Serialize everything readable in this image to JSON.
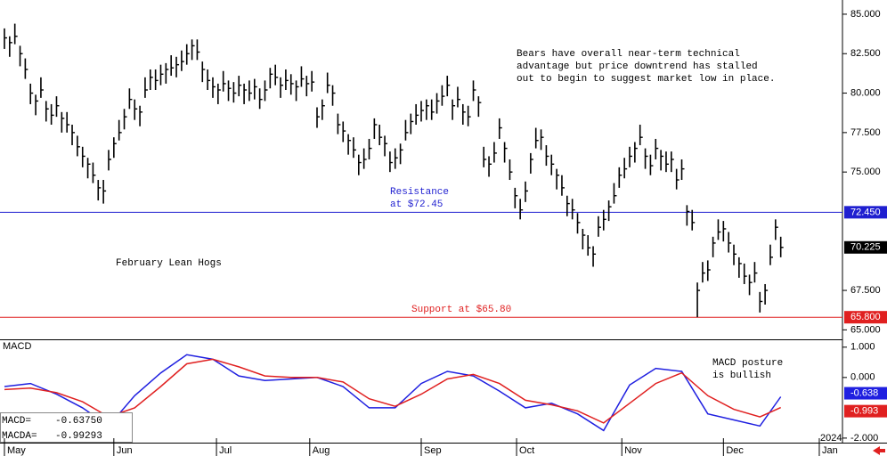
{
  "chart_data": [
    {
      "type": "hlc",
      "title": "February Lean Hogs",
      "annotation": [
        "Bears have overall near-term technical",
        "advantage but price downtrend has stalled",
        "out to begin to suggest market low in place."
      ],
      "color": "#000000",
      "xlim": [
        -0.85,
        160.85
      ],
      "ylim": [
        64.4,
        85.9
      ],
      "yticks": [
        {
          "value": 85,
          "label": "85.000"
        },
        {
          "value": 82.5,
          "label": "82.500"
        },
        {
          "value": 80,
          "label": "80.000"
        },
        {
          "value": 77.5,
          "label": "77.500"
        },
        {
          "value": 75,
          "label": "75.000"
        },
        {
          "value": 67.5,
          "label": "67.500"
        },
        {
          "value": 65,
          "label": "65.000"
        }
      ],
      "levels": [
        {
          "value": 72.45,
          "label": "72.450",
          "color": "#1f1fd0",
          "text": [
            "Resistance",
            "at $72.45"
          ]
        },
        {
          "value": 65.8,
          "label": "65.800",
          "color": "#e02020",
          "text": [
            "Support at $65.80"
          ]
        }
      ],
      "high": [
        84.1,
        83.6,
        84.4,
        83.0,
        82.2,
        80.6,
        79.9,
        81.0,
        79.5,
        79.3,
        79.8,
        78.8,
        78.8,
        78.0,
        77.3,
        76.6,
        75.9,
        75.6,
        74.5,
        74.5,
        76.4,
        77.2,
        78.3,
        79.0,
        80.3,
        79.6,
        79.2,
        81.0,
        81.5,
        81.5,
        81.8,
        81.9,
        82.4,
        82.3,
        82.7,
        83.1,
        83.4,
        83.4,
        82.0,
        81.5,
        81.0,
        80.6,
        81.4,
        80.8,
        80.7,
        81.1,
        80.6,
        80.8,
        80.9,
        80.3,
        80.8,
        81.6,
        81.8,
        81.0,
        81.5,
        81.2,
        80.8,
        81.7,
        81.1,
        81.4,
        79.1,
        79.6,
        81.3,
        80.5,
        78.7,
        78.2,
        77.4,
        77.2,
        76.1,
        76.5,
        77.1,
        78.4,
        78.0,
        77.3,
        76.3,
        76.5,
        76.8,
        78.3,
        78.7,
        79.3,
        79.5,
        79.6,
        79.6,
        80.0,
        80.5,
        81.1,
        79.6,
        80.4,
        79.3,
        79.2,
        80.8,
        79.8,
        76.6,
        76.0,
        76.9,
        78.4,
        76.9,
        75.8,
        74.0,
        73.3,
        74.4,
        76.2,
        77.8,
        77.7,
        76.7,
        76.1,
        75.2,
        74.8,
        73.5,
        73.3,
        72.4,
        71.4,
        71.0,
        70.3,
        72.2,
        72.6,
        73.2,
        74.3,
        75.3,
        75.9,
        76.6,
        76.9,
        78.0,
        76.5,
        76.1,
        77.1,
        76.4,
        76.3,
        76.3,
        75.2,
        75.8,
        72.9,
        72.6,
        68.0,
        69.3,
        69.4,
        70.9,
        72.0,
        71.9,
        71.2,
        70.4,
        69.6,
        69.2,
        68.5,
        69.3,
        67.4,
        67.9,
        70.4,
        72.0,
        70.9
      ],
      "low": [
        82.8,
        82.3,
        83.1,
        81.7,
        80.9,
        79.3,
        78.6,
        79.7,
        78.2,
        78.0,
        78.5,
        77.5,
        77.5,
        76.7,
        76.0,
        75.3,
        74.6,
        74.3,
        73.2,
        73.0,
        75.1,
        75.9,
        77.0,
        77.7,
        79.0,
        78.3,
        77.9,
        79.7,
        80.2,
        80.2,
        80.5,
        80.6,
        81.1,
        81.0,
        81.4,
        81.8,
        82.1,
        82.1,
        80.7,
        80.2,
        79.7,
        79.3,
        80.1,
        79.5,
        79.4,
        79.8,
        79.3,
        79.5,
        79.6,
        79.0,
        79.5,
        80.3,
        80.5,
        79.7,
        80.2,
        79.9,
        79.5,
        80.4,
        79.8,
        80.1,
        77.8,
        78.3,
        80.0,
        79.2,
        77.4,
        76.9,
        76.1,
        75.9,
        74.8,
        75.2,
        75.8,
        77.1,
        76.7,
        76.0,
        75.0,
        75.2,
        75.5,
        77.0,
        77.4,
        78.0,
        78.2,
        78.3,
        78.3,
        78.7,
        79.2,
        79.8,
        78.3,
        79.1,
        78.0,
        77.9,
        79.5,
        78.5,
        75.3,
        74.7,
        75.6,
        77.1,
        75.6,
        74.5,
        72.7,
        72.0,
        73.1,
        74.9,
        76.5,
        76.4,
        75.4,
        74.8,
        73.9,
        73.5,
        72.2,
        72.0,
        71.1,
        70.1,
        69.7,
        69.0,
        70.9,
        71.3,
        71.9,
        73.0,
        74.0,
        74.6,
        75.3,
        75.6,
        76.7,
        75.2,
        74.8,
        75.8,
        75.1,
        75.0,
        75.0,
        73.9,
        74.5,
        71.6,
        71.3,
        65.8,
        68.0,
        68.1,
        69.6,
        70.7,
        70.6,
        69.9,
        69.1,
        68.3,
        67.9,
        67.2,
        68.0,
        66.1,
        66.6,
        69.1,
        70.7,
        69.6
      ],
      "close": [
        83.5,
        83.2,
        83.6,
        82.5,
        81.5,
        80.0,
        79.5,
        80.2,
        79.0,
        78.6,
        79.2,
        78.4,
        78.0,
        77.5,
        76.6,
        76.0,
        75.5,
        74.8,
        74.0,
        73.8,
        75.8,
        76.8,
        77.5,
        78.5,
        79.6,
        79.0,
        78.8,
        80.2,
        81.0,
        80.8,
        81.2,
        81.5,
        81.6,
        81.8,
        82.0,
        82.5,
        83.0,
        82.6,
        81.5,
        80.8,
        80.4,
        80.2,
        80.6,
        80.3,
        80.0,
        80.5,
        80.2,
        80.0,
        80.4,
        79.6,
        80.2,
        81.2,
        81.0,
        80.5,
        80.8,
        80.6,
        80.4,
        80.9,
        80.6,
        80.7,
        78.5,
        79.2,
        80.5,
        80.0,
        78.0,
        77.6,
        77.0,
        76.4,
        75.6,
        75.8,
        76.5,
        78.0,
        77.2,
        76.8,
        75.6,
        75.9,
        76.4,
        77.5,
        78.2,
        78.6,
        78.9,
        79.2,
        78.8,
        79.5,
        79.8,
        80.5,
        79.2,
        79.6,
        78.8,
        78.5,
        80.2,
        79.4,
        75.8,
        75.5,
        76.2,
        77.8,
        76.5,
        75.0,
        73.5,
        72.6,
        73.8,
        75.8,
        77.0,
        77.2,
        76.0,
        75.5,
        74.8,
        74.0,
        73.0,
        72.6,
        71.8,
        71.0,
        70.2,
        69.8,
        71.5,
        72.0,
        72.8,
        73.5,
        74.8,
        75.2,
        76.0,
        76.5,
        77.2,
        76.0,
        75.4,
        76.5,
        76.0,
        75.5,
        75.8,
        74.5,
        75.2,
        72.5,
        71.8,
        67.5,
        68.6,
        68.8,
        70.5,
        71.2,
        71.4,
        70.5,
        69.8,
        69.2,
        68.4,
        68.0,
        68.6,
        66.8,
        67.5,
        69.6,
        71.5,
        70.225
      ]
    },
    {
      "type": "line",
      "title": "MACD",
      "annotation": [
        "MACD posture",
        "is bullish"
      ],
      "year_label": "2024",
      "xlim": [
        -0.85,
        160.85
      ],
      "ylim": [
        -2.15,
        1.2
      ],
      "yticks": [
        {
          "value": 1,
          "label": "1.000"
        },
        {
          "value": 0,
          "label": "0.000"
        },
        {
          "value": -2,
          "label": "-2.000"
        }
      ],
      "xticks": [
        {
          "value": 0,
          "label": "May"
        },
        {
          "value": 21,
          "label": "Jun"
        },
        {
          "value": 40.7,
          "label": "Jul"
        },
        {
          "value": 58.6,
          "label": "Aug"
        },
        {
          "value": 80,
          "label": "Sep"
        },
        {
          "value": 98.3,
          "label": "Oct"
        },
        {
          "value": 118.5,
          "label": "Nov"
        },
        {
          "value": 138,
          "label": "Dec"
        },
        {
          "value": 156.4,
          "label": "Jan"
        }
      ],
      "x": [
        0,
        5,
        10,
        15,
        20,
        25,
        30,
        35,
        40,
        45,
        50,
        55,
        60,
        65,
        70,
        75,
        80,
        85,
        90,
        95,
        100,
        105,
        110,
        115,
        120,
        125,
        130,
        135,
        140,
        145,
        149
      ],
      "series": [
        {
          "name": "MACD=",
          "color": "#1f1fe0",
          "readout": {
            "value": -0.6375,
            "label": "-0.63750"
          },
          "values": [
            -0.3,
            -0.2,
            -0.55,
            -1.0,
            -1.6,
            -0.6,
            0.15,
            0.75,
            0.6,
            0.05,
            -0.1,
            -0.05,
            0.0,
            -0.3,
            -1.0,
            -1.0,
            -0.2,
            0.2,
            0.05,
            -0.45,
            -1.0,
            -0.85,
            -1.2,
            -1.75,
            -0.25,
            0.3,
            0.2,
            -1.2,
            -1.4,
            -1.6,
            -0.638
          ]
        },
        {
          "name": "MACDA=",
          "color": "#e02020",
          "readout": {
            "value": -0.99293,
            "label": "-0.99293"
          },
          "values": [
            -0.4,
            -0.35,
            -0.5,
            -0.8,
            -1.3,
            -1.0,
            -0.3,
            0.45,
            0.6,
            0.35,
            0.05,
            0.0,
            0.0,
            -0.15,
            -0.7,
            -0.95,
            -0.55,
            -0.05,
            0.1,
            -0.2,
            -0.75,
            -0.9,
            -1.1,
            -1.5,
            -0.85,
            -0.2,
            0.15,
            -0.6,
            -1.05,
            -1.3,
            -0.993
          ]
        }
      ]
    }
  ]
}
